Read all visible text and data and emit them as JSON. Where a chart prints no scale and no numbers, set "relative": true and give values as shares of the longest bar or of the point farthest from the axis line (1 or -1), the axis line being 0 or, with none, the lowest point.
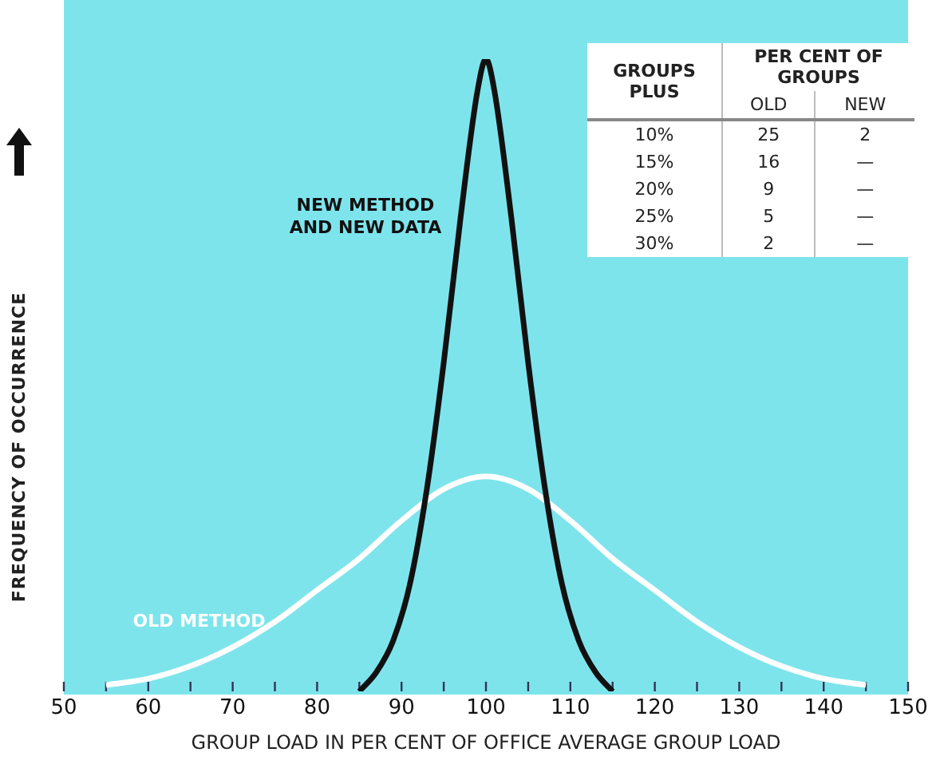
{
  "chart_data": {
    "type": "line",
    "relative": true,
    "xlabel": "GROUP LOAD IN PER CENT OF OFFICE AVERAGE GROUP LOAD",
    "ylabel": "FREQUENCY OF OCCURRENCE",
    "xlim": [
      50,
      150
    ],
    "xticks": [
      50,
      {
        "value": 55,
        "label": null
      },
      60,
      {
        "value": 65,
        "label": null
      },
      70,
      {
        "value": 75,
        "label": null
      },
      80,
      {
        "value": 85,
        "label": null
      },
      90,
      {
        "value": 95,
        "label": null
      },
      100,
      {
        "value": 105,
        "label": null
      },
      110,
      {
        "value": 115,
        "label": null
      },
      120,
      {
        "value": 125,
        "label": null
      },
      130,
      {
        "value": 135,
        "label": null
      },
      140,
      {
        "value": 145,
        "label": null
      },
      150
    ],
    "grid": false,
    "legend": false,
    "marker": "none",
    "series": [
      {
        "name": "NEW METHOD AND NEW DATA",
        "color": "#111111",
        "x": [
          85,
          87,
          89,
          91,
          93,
          95,
          97,
          99,
          100,
          101,
          103,
          105,
          107,
          109,
          111,
          113,
          115
        ],
        "values": [
          0,
          0.03,
          0.08,
          0.17,
          0.32,
          0.52,
          0.75,
          0.95,
          1,
          0.95,
          0.75,
          0.52,
          0.32,
          0.17,
          0.08,
          0.03,
          0
        ]
      },
      {
        "name": "OLD METHOD",
        "color": "#ffffff",
        "x": [
          55,
          60,
          65,
          70,
          75,
          80,
          85,
          90,
          95,
          100,
          105,
          110,
          115,
          120,
          125,
          130,
          135,
          140,
          145
        ],
        "values": [
          0.01,
          0.02,
          0.04,
          0.07,
          0.11,
          0.16,
          0.21,
          0.27,
          0.32,
          0.34,
          0.32,
          0.27,
          0.21,
          0.16,
          0.11,
          0.07,
          0.04,
          0.02,
          0.01
        ]
      }
    ],
    "annotations": [
      "GROUPS PLUS",
      "PER CENT OF GROUPS",
      "OLD",
      "NEW",
      "10%",
      "25",
      "2",
      "15%",
      "16",
      "—",
      "20%",
      "9",
      "—",
      "25%",
      "5",
      "—",
      "30%",
      "2",
      "—"
    ]
  }
}
